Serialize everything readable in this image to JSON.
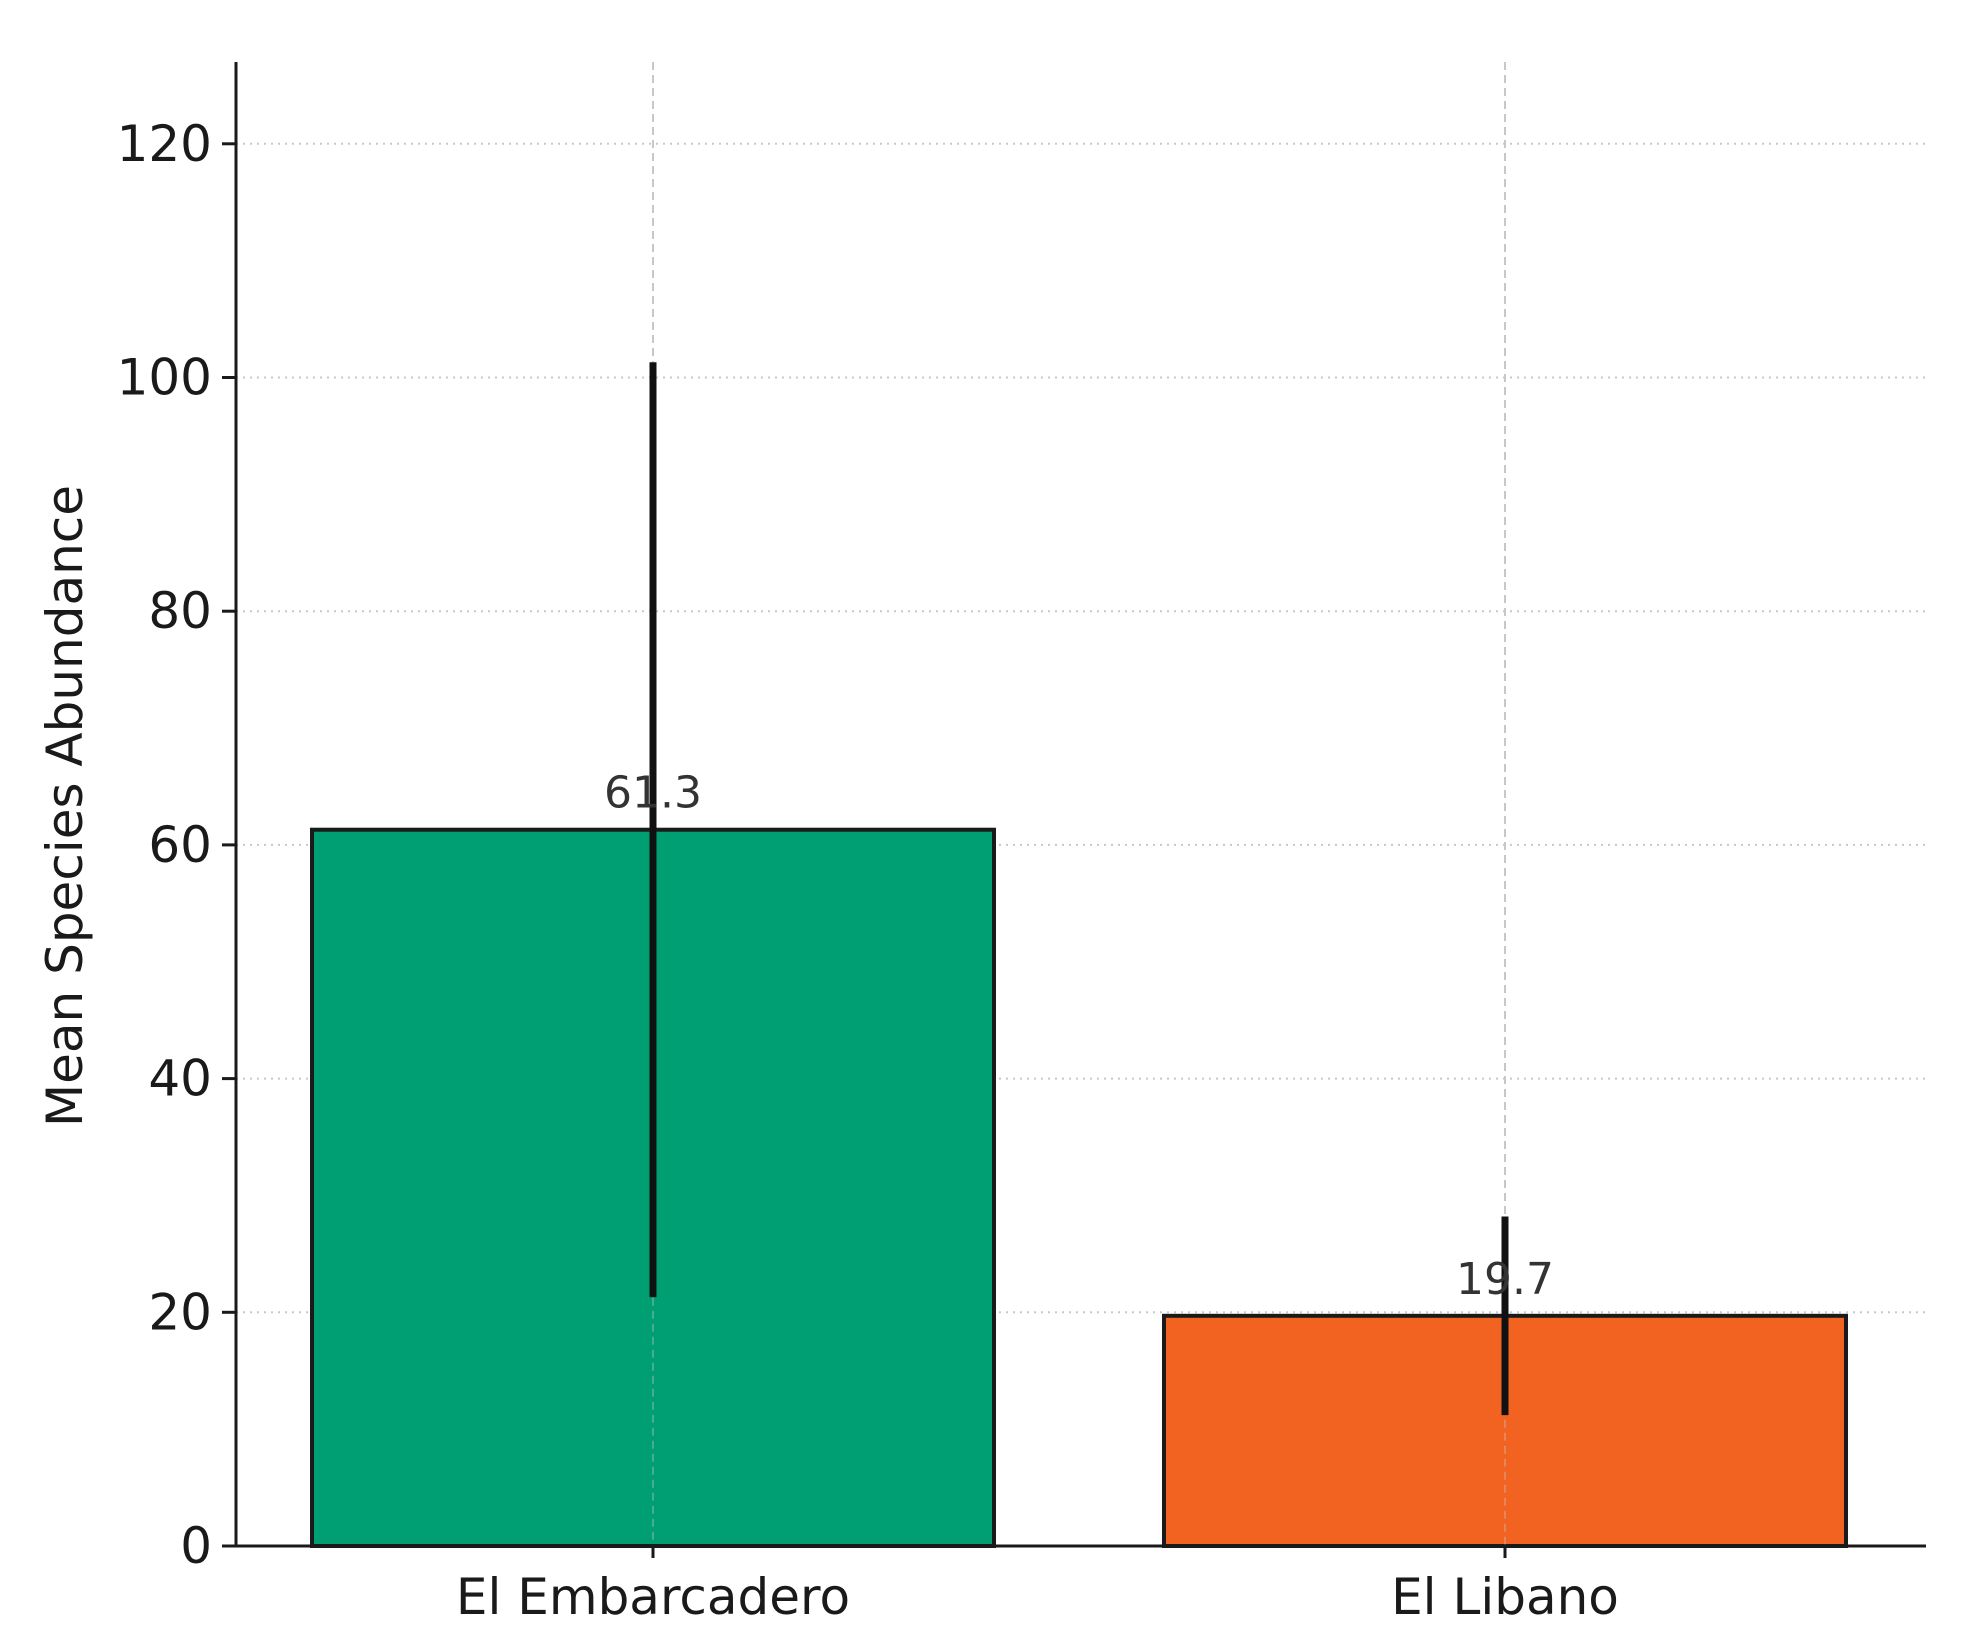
{
  "chart_data": {
    "type": "bar",
    "title": "",
    "xlabel": "",
    "ylabel": "Mean Species Abundance",
    "categories": [
      "El Embarcadero",
      "El Libano"
    ],
    "values": [
      61.3,
      19.7
    ],
    "value_labels": [
      "61.3",
      "19.7"
    ],
    "error": [
      40,
      8.5
    ],
    "colors": [
      "#009e73",
      "#f26322"
    ],
    "ylim": [
      0,
      127
    ],
    "yticks": [
      0,
      20,
      40,
      60,
      80,
      100,
      120
    ],
    "grid": true,
    "legend": "none"
  }
}
